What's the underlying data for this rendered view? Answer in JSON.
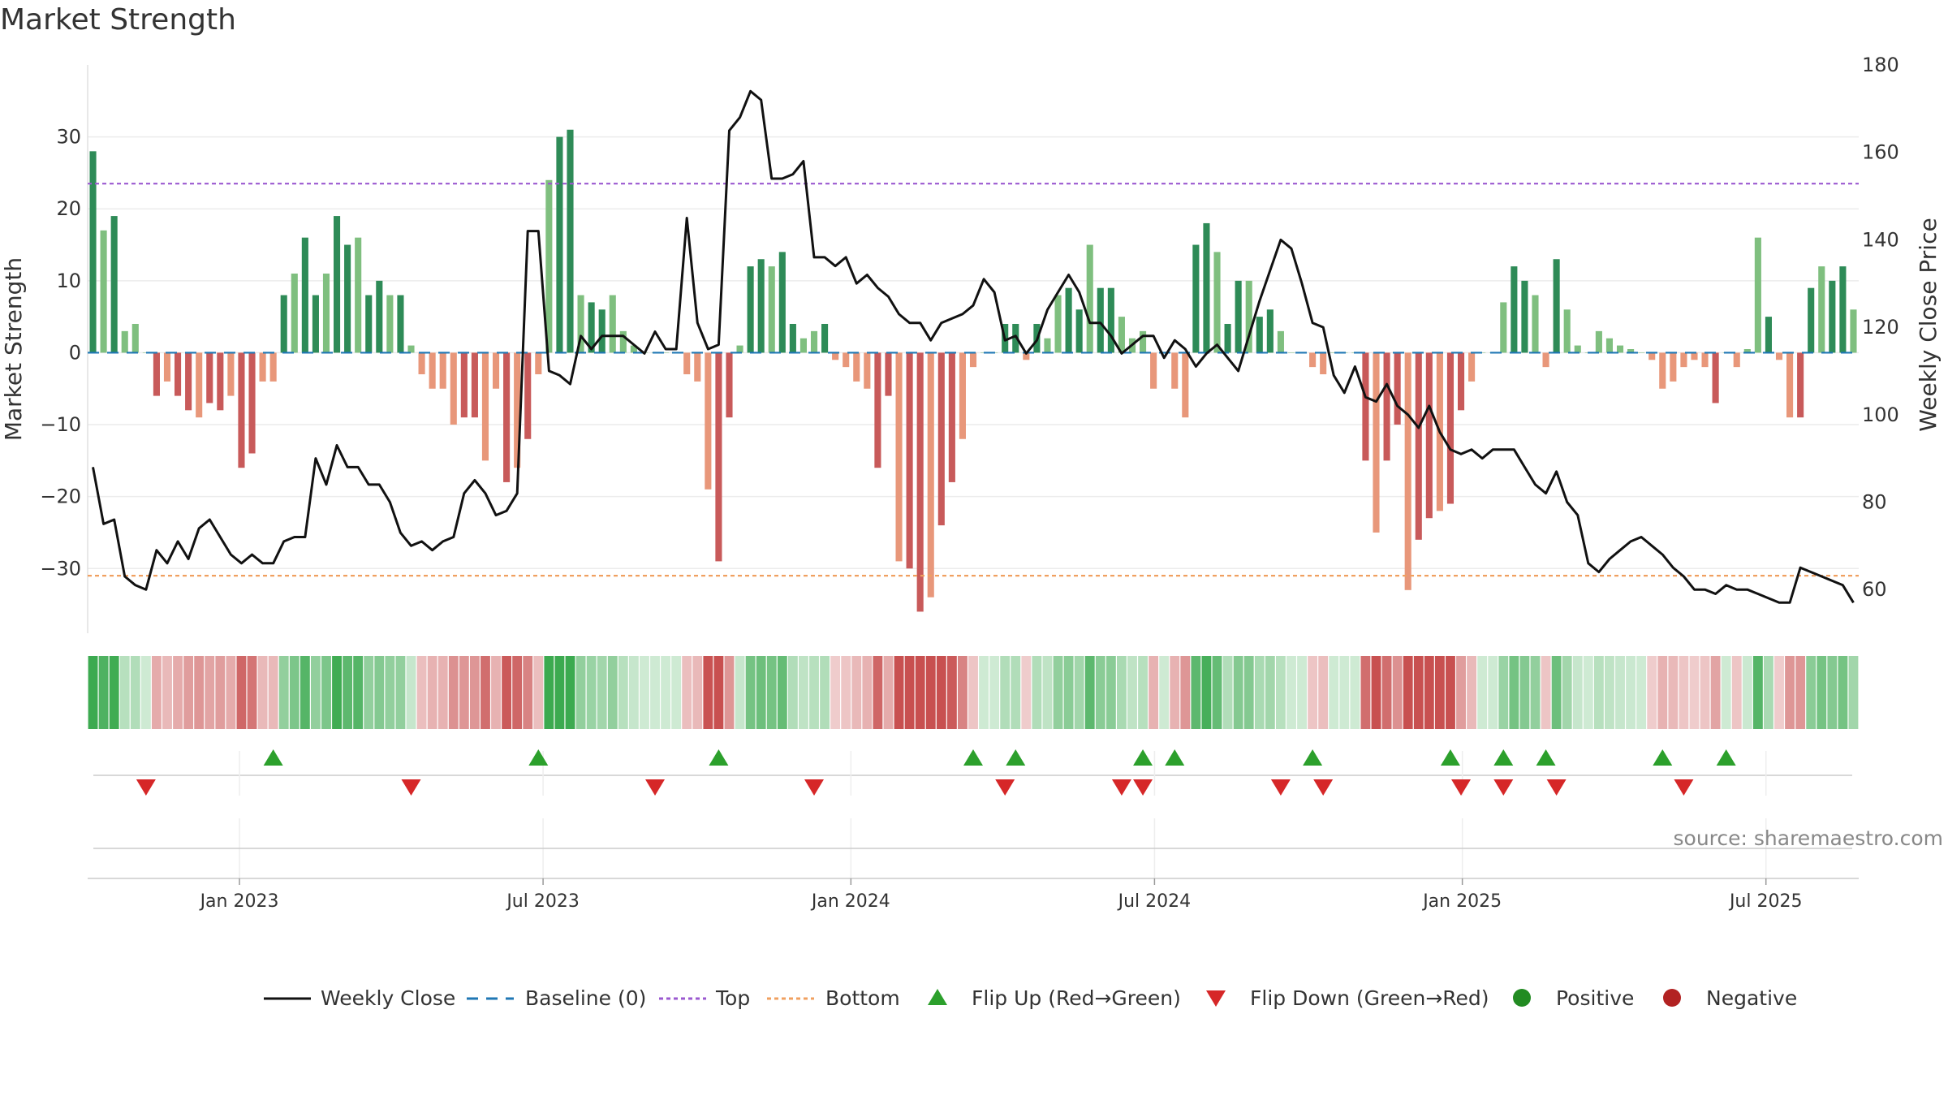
{
  "title": "Market Strength",
  "source": "source: sharemaestro.com",
  "chart_data": {
    "type": "bar",
    "left_axis": {
      "label": "Market Strength",
      "ylim": [
        -39,
        40
      ],
      "ticks": [
        30,
        20,
        10,
        0,
        -10,
        -20,
        -30
      ]
    },
    "right_axis": {
      "label": "Weekly Close Price",
      "ylim": [
        50,
        180
      ],
      "ticks": [
        180,
        160,
        140,
        120,
        100,
        80,
        60
      ]
    },
    "x_ticks": [
      "Jan 2023",
      "Jul 2023",
      "Jan 2024",
      "Jul 2024",
      "Jan 2025",
      "Jul 2025"
    ],
    "reference_lines": {
      "baseline": 0,
      "top": 23.5,
      "bottom": -31
    },
    "grid": true,
    "legend_position": "bottom",
    "legend": [
      "Weekly Close",
      "Baseline (0)",
      "Top",
      "Bottom",
      "Flip Up (Red→Green)",
      "Flip Down (Green→Red)",
      "Positive",
      "Negative"
    ],
    "colors": {
      "close": "#111111",
      "baseline": "#1f77b4",
      "top": "#9b59d0",
      "bottom": "#f0a060",
      "pos_dark": "#2e8b57",
      "pos_light": "#7fbf7f",
      "neg_dark": "#c85a5a",
      "neg_light": "#e8977a",
      "flip_up": "#2ca02c",
      "flip_down": "#d62728",
      "positive": "#228b22",
      "negative": "#b22222"
    },
    "strength": [
      28,
      17,
      19,
      3,
      4,
      0,
      -6,
      -4,
      -6,
      -8,
      -9,
      -7,
      -8,
      -6,
      -16,
      -14,
      -4,
      -4,
      8,
      11,
      16,
      8,
      11,
      19,
      15,
      16,
      8,
      10,
      8,
      8,
      1,
      -3,
      -5,
      -5,
      -10,
      -9,
      -9,
      -15,
      -5,
      -18,
      -16,
      -12,
      -3,
      24,
      30,
      31,
      8,
      7,
      6,
      8,
      3,
      1,
      0,
      0,
      0,
      0,
      -3,
      -4,
      -19,
      -29,
      -9,
      1,
      12,
      13,
      12,
      14,
      4,
      2,
      3,
      4,
      -1,
      -2,
      -4,
      -5,
      -16,
      -6,
      -29,
      -30,
      -36,
      -34,
      -24,
      -18,
      -12,
      -2,
      0,
      0,
      4,
      4,
      -1,
      4,
      2,
      8,
      9,
      6,
      15,
      9,
      9,
      5,
      2,
      3,
      -5,
      0,
      -5,
      -9,
      15,
      18,
      14,
      4,
      10,
      10,
      5,
      6,
      3,
      0,
      0,
      -2,
      -3,
      0,
      0,
      0,
      -15,
      -25,
      -15,
      -10,
      -33,
      -26,
      -23,
      -22,
      -21,
      -8,
      -4,
      0,
      0,
      7,
      12,
      10,
      8,
      -2,
      13,
      6,
      1,
      0,
      3,
      2,
      1,
      0.5,
      0,
      -1,
      -5,
      -4,
      -2,
      -1,
      -2,
      -7,
      0,
      -2,
      0.5,
      16,
      5,
      -1,
      -9,
      -9,
      9,
      12,
      10,
      12,
      6
    ],
    "weekly_close": [
      88,
      75,
      76,
      63,
      61,
      60,
      69,
      66,
      71,
      67,
      74,
      76,
      72,
      68,
      66,
      68,
      66,
      66,
      71,
      72,
      72,
      90,
      84,
      93,
      88,
      88,
      84,
      84,
      80,
      73,
      70,
      71,
      69,
      71,
      72,
      82,
      85,
      82,
      77,
      78,
      82,
      142,
      142,
      110,
      109,
      107,
      118,
      115,
      118,
      118,
      118,
      116,
      114,
      119,
      115,
      115,
      145,
      121,
      115,
      116,
      165,
      168,
      174,
      172,
      154,
      154,
      155,
      158,
      136,
      136,
      134,
      136,
      130,
      132,
      129,
      127,
      123,
      121,
      121,
      117,
      121,
      122,
      123,
      125,
      131,
      128,
      117,
      118,
      114,
      117,
      124,
      128,
      132,
      128,
      121,
      121,
      118,
      114,
      116,
      118,
      118,
      113,
      117,
      115,
      111,
      114,
      116,
      113,
      110,
      118,
      126,
      133,
      140,
      138,
      130,
      121,
      120,
      109,
      105,
      111,
      104,
      103,
      107,
      102,
      100,
      97,
      102,
      96,
      92,
      91,
      92,
      90,
      92,
      92,
      92,
      88,
      84,
      82,
      87,
      80,
      77,
      66,
      64,
      67,
      69,
      71,
      72,
      70,
      68,
      65,
      63,
      60,
      60,
      59,
      61,
      60,
      60,
      59,
      58,
      57,
      57,
      65,
      64,
      63,
      62,
      61,
      57
    ],
    "flip_up_weeks": [
      17,
      42,
      59,
      83,
      87,
      99,
      102,
      115,
      128,
      133,
      137,
      148,
      154
    ],
    "flip_down_weeks": [
      5,
      30,
      53,
      68,
      86,
      97,
      99,
      112,
      116,
      129,
      133,
      138,
      150
    ]
  }
}
